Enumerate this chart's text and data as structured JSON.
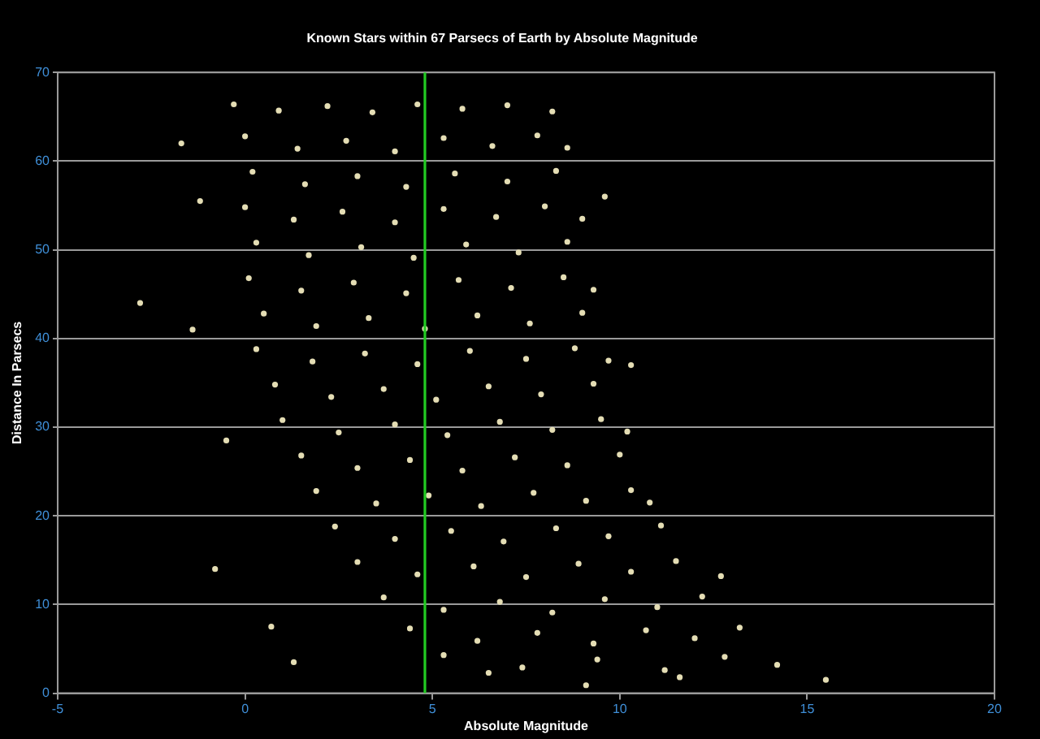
{
  "chart_data": {
    "type": "scatter",
    "title": "Known Stars within 67 Parsecs of Earth by Absolute Magnitude",
    "xlabel": "Absolute Magnitude",
    "ylabel": "Distance In Parsecs",
    "xlim": [
      -5,
      20
    ],
    "xticks": [
      -5,
      0,
      5,
      10,
      15,
      20
    ],
    "ylim": [
      0,
      70
    ],
    "yticks": [
      0,
      10,
      20,
      30,
      40,
      50,
      60,
      70
    ],
    "grid": "y",
    "marker": "circle",
    "color": "#e4ddb4",
    "x": [
      -0.3,
      0.9,
      2.2,
      3.4,
      4.6,
      5.8,
      7.0,
      8.2,
      0.0,
      1.4,
      2.7,
      4.0,
      5.3,
      6.6,
      7.8,
      8.6,
      0.2,
      1.6,
      3.0,
      4.3,
      5.6,
      7.0,
      8.3,
      0.0,
      1.3,
      2.6,
      4.0,
      5.3,
      6.7,
      8.0,
      9.0,
      0.3,
      1.7,
      3.1,
      4.5,
      5.9,
      7.3,
      8.6,
      0.1,
      1.5,
      2.9,
      4.3,
      5.7,
      7.1,
      8.5,
      9.3,
      0.5,
      1.9,
      3.3,
      4.8,
      6.2,
      7.6,
      9.0,
      0.3,
      1.8,
      3.2,
      4.6,
      6.0,
      7.5,
      8.8,
      9.7,
      0.8,
      2.3,
      3.7,
      5.1,
      6.5,
      7.9,
      9.3,
      1.0,
      2.5,
      4.0,
      5.4,
      6.8,
      8.2,
      9.5,
      10.2,
      1.5,
      3.0,
      4.4,
      5.8,
      7.2,
      8.6,
      10.0,
      1.9,
      3.5,
      4.9,
      6.3,
      7.7,
      9.1,
      10.3,
      10.8,
      2.4,
      4.0,
      5.5,
      6.9,
      8.3,
      9.7,
      11.1,
      3.0,
      4.6,
      6.1,
      7.5,
      8.9,
      10.3,
      11.5,
      3.7,
      5.3,
      6.8,
      8.2,
      9.6,
      11.0,
      12.2,
      4.4,
      6.2,
      7.8,
      9.3,
      10.7,
      12.0,
      13.2,
      5.3,
      7.4,
      9.4,
      11.2,
      12.8,
      14.2,
      6.5,
      9.1,
      11.6,
      15.5,
      -2.8,
      -1.7,
      -1.2,
      -1.4,
      -0.5,
      -0.8,
      0.7,
      1.3,
      9.6,
      10.3,
      12.7
    ],
    "values": [
      66.4,
      65.7,
      66.2,
      65.5,
      66.4,
      65.9,
      66.3,
      65.6,
      62.8,
      61.4,
      62.3,
      61.1,
      62.6,
      61.7,
      62.9,
      61.5,
      58.8,
      57.4,
      58.3,
      57.1,
      58.6,
      57.7,
      58.9,
      54.8,
      53.4,
      54.3,
      53.1,
      54.6,
      53.7,
      54.9,
      53.5,
      50.8,
      49.4,
      50.3,
      49.1,
      50.6,
      49.7,
      50.9,
      46.8,
      45.4,
      46.3,
      45.1,
      46.6,
      45.7,
      46.9,
      45.5,
      42.8,
      41.4,
      42.3,
      41.1,
      42.6,
      41.7,
      42.9,
      38.8,
      37.4,
      38.3,
      37.1,
      38.6,
      37.7,
      38.9,
      37.5,
      34.8,
      33.4,
      34.3,
      33.1,
      34.6,
      33.7,
      34.9,
      30.8,
      29.4,
      30.3,
      29.1,
      30.6,
      29.7,
      30.9,
      29.5,
      26.8,
      25.4,
      26.3,
      25.1,
      26.6,
      25.7,
      26.9,
      22.8,
      21.4,
      22.3,
      21.1,
      22.6,
      21.7,
      22.9,
      21.5,
      18.8,
      17.4,
      18.3,
      17.1,
      18.6,
      17.7,
      18.9,
      14.8,
      13.4,
      14.3,
      13.1,
      14.6,
      13.7,
      14.9,
      10.8,
      9.4,
      10.3,
      9.1,
      10.6,
      9.7,
      10.9,
      7.3,
      5.9,
      6.8,
      5.6,
      7.1,
      6.2,
      7.4,
      4.3,
      2.9,
      3.8,
      2.6,
      4.1,
      3.2,
      2.3,
      0.9,
      1.8,
      1.5,
      44.0,
      62.0,
      55.5,
      41.0,
      28.5,
      14.0,
      7.5,
      3.5,
      56.0,
      37.0,
      13.2
    ],
    "ref_lines": [
      {
        "axis": "x",
        "value": 4.8,
        "color": "#22cc22"
      }
    ]
  }
}
